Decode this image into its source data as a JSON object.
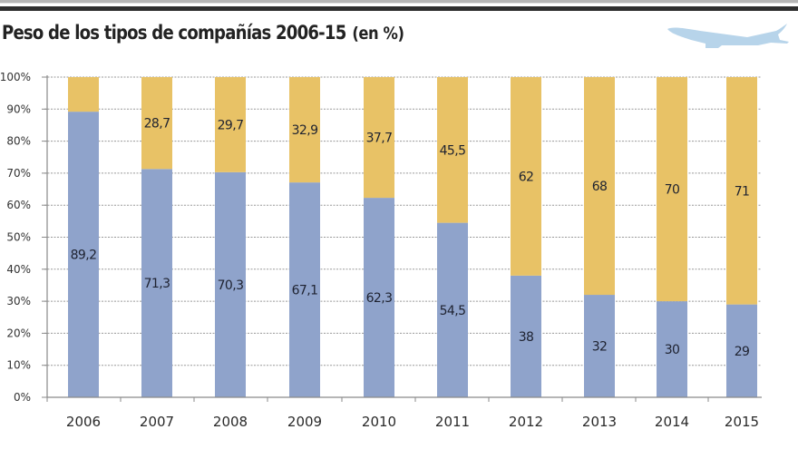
{
  "header": {
    "title": "Peso de los tipos de compañías 2006-15",
    "unit": "(en %)",
    "icon": "airplane-icon"
  },
  "colors": {
    "series_bottom": "#8fa3cb",
    "series_top": "#e8c266",
    "gridline": "#9a9a9a",
    "axis": "#8a8a8a",
    "plane": "#b7d4ea"
  },
  "chart_data": {
    "type": "bar",
    "stacked": true,
    "title": "Peso de los tipos de compañías 2006-15 (en %)",
    "xlabel": "",
    "ylabel": "",
    "ylim": [
      0,
      100
    ],
    "yticks": [
      "0%",
      "10%",
      "20%",
      "30%",
      "40%",
      "50%",
      "60%",
      "70%",
      "80%",
      "90%",
      "100%"
    ],
    "grid": true,
    "legend": "none",
    "categories": [
      "2006",
      "2007",
      "2008",
      "2009",
      "2010",
      "2011",
      "2012",
      "2013",
      "2014",
      "2015"
    ],
    "series": [
      {
        "name": "bottom",
        "color": "#8fa3cb",
        "values": [
          89.2,
          71.3,
          70.3,
          67.1,
          62.3,
          54.5,
          38,
          32,
          30,
          29
        ],
        "labels": [
          "89,2",
          "71,3",
          "70,3",
          "67,1",
          "62,3",
          "54,5",
          "38",
          "32",
          "30",
          "29"
        ]
      },
      {
        "name": "top",
        "color": "#e8c266",
        "values": [
          10.8,
          28.7,
          29.7,
          32.9,
          37.7,
          45.5,
          62,
          68,
          70,
          71
        ],
        "labels": [
          "",
          "28,7",
          "29,7",
          "32,9",
          "37,7",
          "45,5",
          "62",
          "68",
          "70",
          "71"
        ]
      }
    ]
  }
}
